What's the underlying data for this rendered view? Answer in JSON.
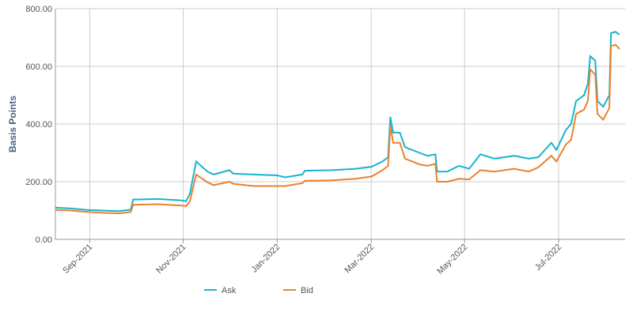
{
  "chart_data": {
    "type": "line",
    "y_label": "Basis Points",
    "x": [
      2021.606,
      2021.634,
      2021.662,
      2021.691,
      2021.719,
      2021.74,
      2021.744,
      2021.789,
      2021.831,
      2021.838,
      2021.845,
      2021.856,
      2021.876,
      2021.887,
      2021.915,
      2021.922,
      2021.958,
      2022.0,
      2022.014,
      2022.045,
      2022.049,
      2022.098,
      2022.14,
      2022.168,
      2022.187,
      2022.197,
      2022.201,
      2022.206,
      2022.218,
      2022.227,
      2022.253,
      2022.267,
      2022.281,
      2022.284,
      2022.302,
      2022.323,
      2022.341,
      2022.361,
      2022.386,
      2022.421,
      2022.447,
      2022.464,
      2022.487,
      2022.496,
      2022.513,
      2022.522,
      2022.531,
      2022.545,
      2022.552,
      2022.556,
      2022.565,
      2022.569,
      2022.579,
      2022.59,
      2022.593,
      2022.601,
      2022.608
    ],
    "series": [
      {
        "name": "Ask",
        "color": "#17b3cf",
        "values": [
          110,
          107,
          102,
          100,
          98,
          103,
          138,
          140,
          135,
          132,
          158,
          270,
          235,
          225,
          240,
          228,
          225,
          222,
          215,
          225,
          238,
          240,
          245,
          252,
          270,
          285,
          425,
          370,
          370,
          320,
          300,
          290,
          295,
          235,
          235,
          255,
          245,
          295,
          280,
          290,
          280,
          285,
          335,
          310,
          380,
          400,
          480,
          500,
          540,
          635,
          620,
          480,
          460,
          500,
          715,
          720,
          710
        ]
      },
      {
        "name": "Bid",
        "color": "#e8822f",
        "values": [
          102,
          100,
          95,
          92,
          90,
          95,
          120,
          122,
          117,
          115,
          132,
          225,
          198,
          188,
          200,
          193,
          185,
          185,
          185,
          195,
          203,
          205,
          210,
          218,
          240,
          255,
          395,
          335,
          335,
          280,
          260,
          255,
          262,
          200,
          200,
          210,
          208,
          240,
          235,
          245,
          235,
          250,
          290,
          270,
          330,
          345,
          435,
          450,
          480,
          590,
          570,
          435,
          415,
          455,
          670,
          675,
          660
        ]
      }
    ],
    "xlim": [
      2021.606,
      2022.618
    ],
    "xticks": [
      {
        "value": 2021.667,
        "label": "Sep-2021"
      },
      {
        "value": 2021.833,
        "label": "Nov-2021"
      },
      {
        "value": 2022.0,
        "label": "Jan-2022"
      },
      {
        "value": 2022.167,
        "label": "Mar-2022"
      },
      {
        "value": 2022.333,
        "label": "May-2022"
      },
      {
        "value": 2022.5,
        "label": "Jul-2022"
      }
    ],
    "ylim": [
      0,
      800
    ],
    "yticks": [
      {
        "value": 0,
        "label": "0.00"
      },
      {
        "value": 200,
        "label": "200.00"
      },
      {
        "value": 400,
        "label": "400.00"
      },
      {
        "value": 600,
        "label": "600.00"
      },
      {
        "value": 800,
        "label": "800.00"
      }
    ],
    "grid": true,
    "legend": "bottom"
  }
}
